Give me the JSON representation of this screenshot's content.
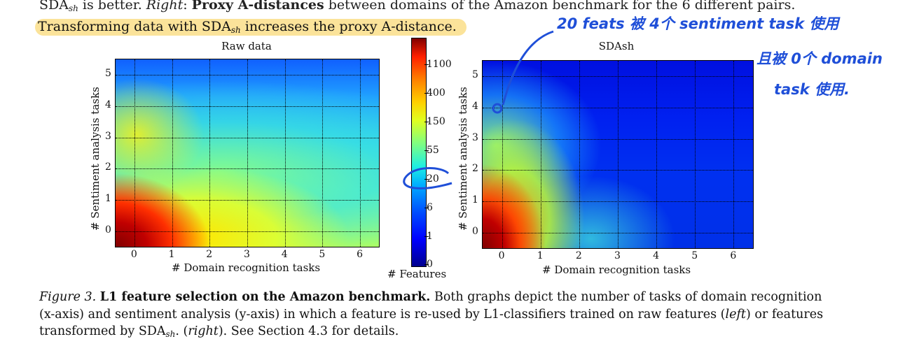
{
  "top_text": {
    "line1_a": "SDA",
    "line1_sub": "sh",
    "line1_b": " is better. ",
    "line1_c": "Right",
    "line1_d": ": ",
    "line1_e": "Proxy A-distances",
    "line1_f": " between domains of the Amazon benchmark for the 6 different pairs.",
    "line2_a": "Transforming data with SDA",
    "line2_sub": "sh",
    "line2_b": " increases the proxy A-distance."
  },
  "chart_data": [
    {
      "type": "heatmap",
      "title": "Raw data",
      "xlabel": "# Domain recognition tasks",
      "ylabel": "# Sentiment analysis tasks",
      "xticks": [
        "0",
        "1",
        "2",
        "3",
        "4",
        "5",
        "6"
      ],
      "yticks": [
        "0",
        "1",
        "2",
        "3",
        "4",
        "5"
      ],
      "xlim": [
        -0.5,
        6.5
      ],
      "ylim": [
        -0.5,
        5.5
      ]
    },
    {
      "type": "heatmap",
      "title": "SDAsh",
      "xlabel": "# Domain recognition tasks",
      "ylabel": "# Sentiment analysis tasks",
      "xticks": [
        "0",
        "1",
        "2",
        "3",
        "4",
        "5",
        "6"
      ],
      "yticks": [
        "0",
        "1",
        "2",
        "3",
        "4",
        "5"
      ],
      "xlim": [
        -0.5,
        6.5
      ],
      "ylim": [
        -0.5,
        5.5
      ]
    }
  ],
  "colorbar": {
    "label": "# Features",
    "ticks": [
      "1100",
      "400",
      "150",
      "55",
      "20",
      "6",
      "1",
      "0"
    ],
    "scale": "log"
  },
  "caption": {
    "fig": "Figure 3.",
    "bold": "L1 feature selection on the Amazon benchmark.",
    "text1": " Both graphs depict the number of tasks of domain recognition (x-axis) and sentiment analysis (y-axis) in which a feature is re-used by L1-classifiers trained on raw features (",
    "left": "left",
    "text2": ") or features transformed by SDA",
    "sub": "sh",
    "text3": ". (",
    "right": "right",
    "text4": "). See Section 4.3 for details."
  },
  "annotation": {
    "line1": "20 feats 被 4个 sentiment task 使用",
    "line2": "且被 0个 domain",
    "line3": "task 使用."
  }
}
